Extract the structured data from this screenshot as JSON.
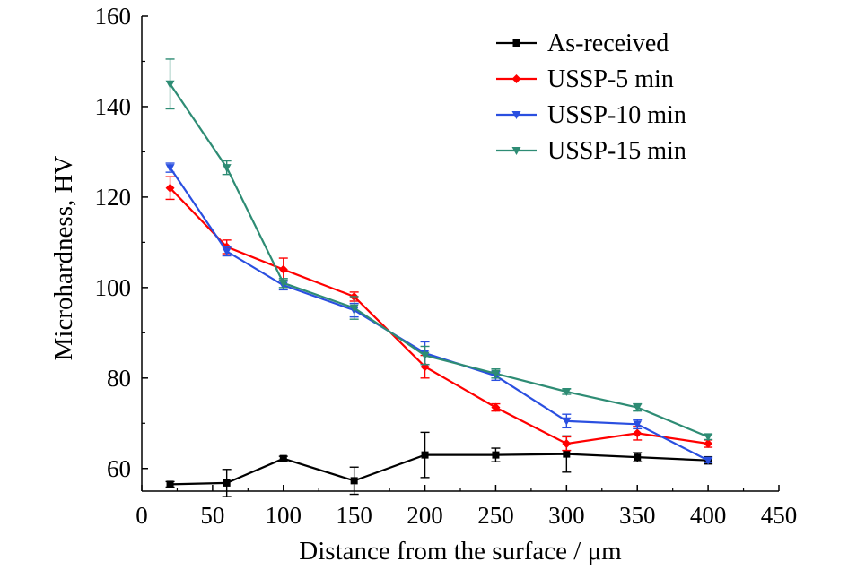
{
  "chart_data": {
    "type": "line",
    "xlabel": "Distance from the surface / μm",
    "ylabel": "Microhardness, HV",
    "xlim": [
      0,
      450
    ],
    "ylim": [
      55,
      160
    ],
    "xticks": [
      0,
      50,
      100,
      150,
      200,
      250,
      300,
      350,
      400,
      450
    ],
    "yticks": [
      60,
      80,
      100,
      120,
      140,
      160
    ],
    "grid": false,
    "legend_position": "top-right",
    "x": [
      20,
      60,
      100,
      150,
      200,
      250,
      300,
      350,
      400
    ],
    "series": [
      {
        "name": "As-received",
        "color": "#000000",
        "marker": "square",
        "values": [
          56.5,
          56.8,
          62.2,
          57.3,
          63.0,
          63.0,
          63.2,
          62.5,
          61.8
        ],
        "errors": [
          0.6,
          3.0,
          0.5,
          3.0,
          5.0,
          1.5,
          4.0,
          1.0,
          0.8
        ]
      },
      {
        "name": "USSP-5 min",
        "color": "#ff0000",
        "marker": "diamond",
        "values": [
          122.0,
          109.0,
          104.0,
          98.0,
          82.5,
          73.5,
          65.5,
          67.8,
          65.5
        ],
        "errors": [
          2.5,
          1.5,
          2.5,
          1.0,
          2.5,
          0.8,
          1.5,
          1.5,
          0.8
        ]
      },
      {
        "name": "USSP-10 min",
        "color": "#2a4fe0",
        "marker": "triangle-down",
        "values": [
          126.5,
          108.0,
          100.5,
          95.0,
          85.5,
          80.5,
          70.5,
          69.8,
          61.8
        ],
        "errors": [
          1.0,
          1.0,
          1.0,
          1.5,
          2.5,
          1.0,
          1.5,
          1.0,
          0.5
        ]
      },
      {
        "name": "USSP-15 min",
        "color": "#2e8c74",
        "marker": "triangle-down",
        "values": [
          145.0,
          126.5,
          101.0,
          95.5,
          85.0,
          81.0,
          77.0,
          73.5,
          67.0
        ],
        "errors": [
          5.5,
          1.5,
          1.0,
          2.5,
          2.0,
          1.0,
          0.6,
          0.8,
          0.6
        ]
      }
    ]
  }
}
